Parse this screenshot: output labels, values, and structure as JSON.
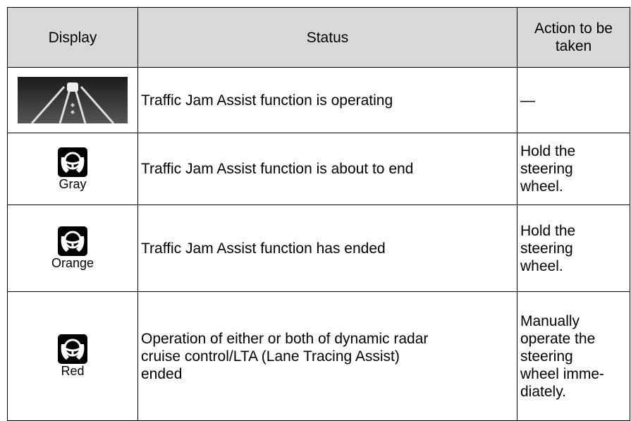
{
  "table": {
    "header": {
      "display": "Display",
      "status": "Status",
      "action": [
        "Action to be",
        "taken"
      ]
    },
    "rows": [
      {
        "status": [
          "Traffic Jam Assist function is operating"
        ],
        "action": [
          "—"
        ]
      },
      {
        "label": "Gray",
        "status": [
          "Traffic Jam Assist function is about to end"
        ],
        "action": [
          "Hold the",
          "steering",
          "wheel."
        ]
      },
      {
        "label": "Orange",
        "status": [
          "Traffic Jam Assist function has ended"
        ],
        "action": [
          "Hold the",
          "steering",
          "wheel."
        ]
      },
      {
        "label": "Red",
        "status": [
          "Operation of either or both of dynamic radar",
          "cruise control/LTA (Lane Tracing Assist)",
          "ended"
        ],
        "action": [
          "Manually",
          "operate the",
          "steering",
          "wheel imme-",
          "diately."
        ]
      }
    ]
  }
}
